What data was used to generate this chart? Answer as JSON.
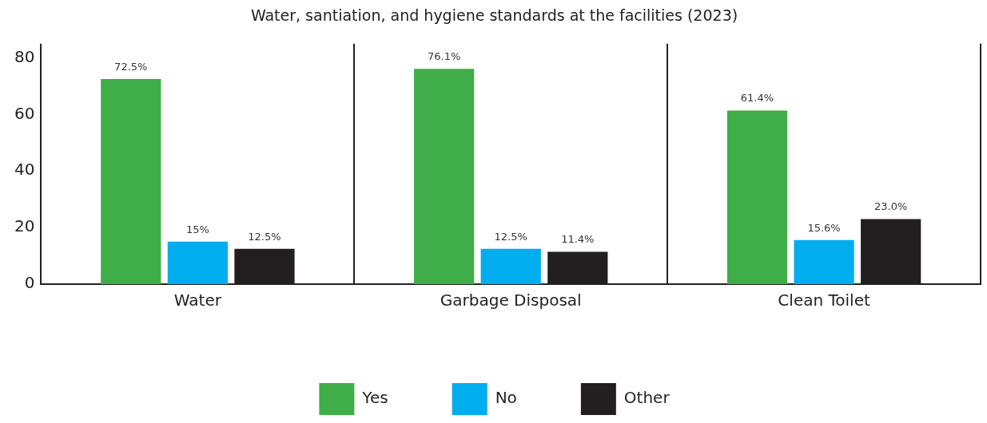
{
  "chart_data": {
    "type": "bar",
    "title": "Water, santiation, and hygiene standards at the facilities (2023)",
    "categories": [
      "Water",
      "Garbage Disposal",
      "Clean Toilet"
    ],
    "series": [
      {
        "name": "Yes",
        "color": "#3fae49",
        "values": [
          72.5,
          76.1,
          61.4
        ],
        "value_labels": [
          "72.5%",
          "76.1%",
          "61.4%"
        ]
      },
      {
        "name": "No",
        "color": "#00adee",
        "values": [
          15,
          12.5,
          15.6
        ],
        "value_labels": [
          "15%",
          "12.5%",
          "15.6%"
        ]
      },
      {
        "name": "Other",
        "color": "#231f20",
        "values": [
          12.5,
          11.4,
          23.0
        ],
        "value_labels": [
          "12.5%",
          "11.4%",
          "23.0%"
        ]
      }
    ],
    "ylim": [
      0,
      85
    ],
    "yticks": [
      0,
      20,
      40,
      60,
      80
    ],
    "grid": "x",
    "legend": "bottom"
  }
}
